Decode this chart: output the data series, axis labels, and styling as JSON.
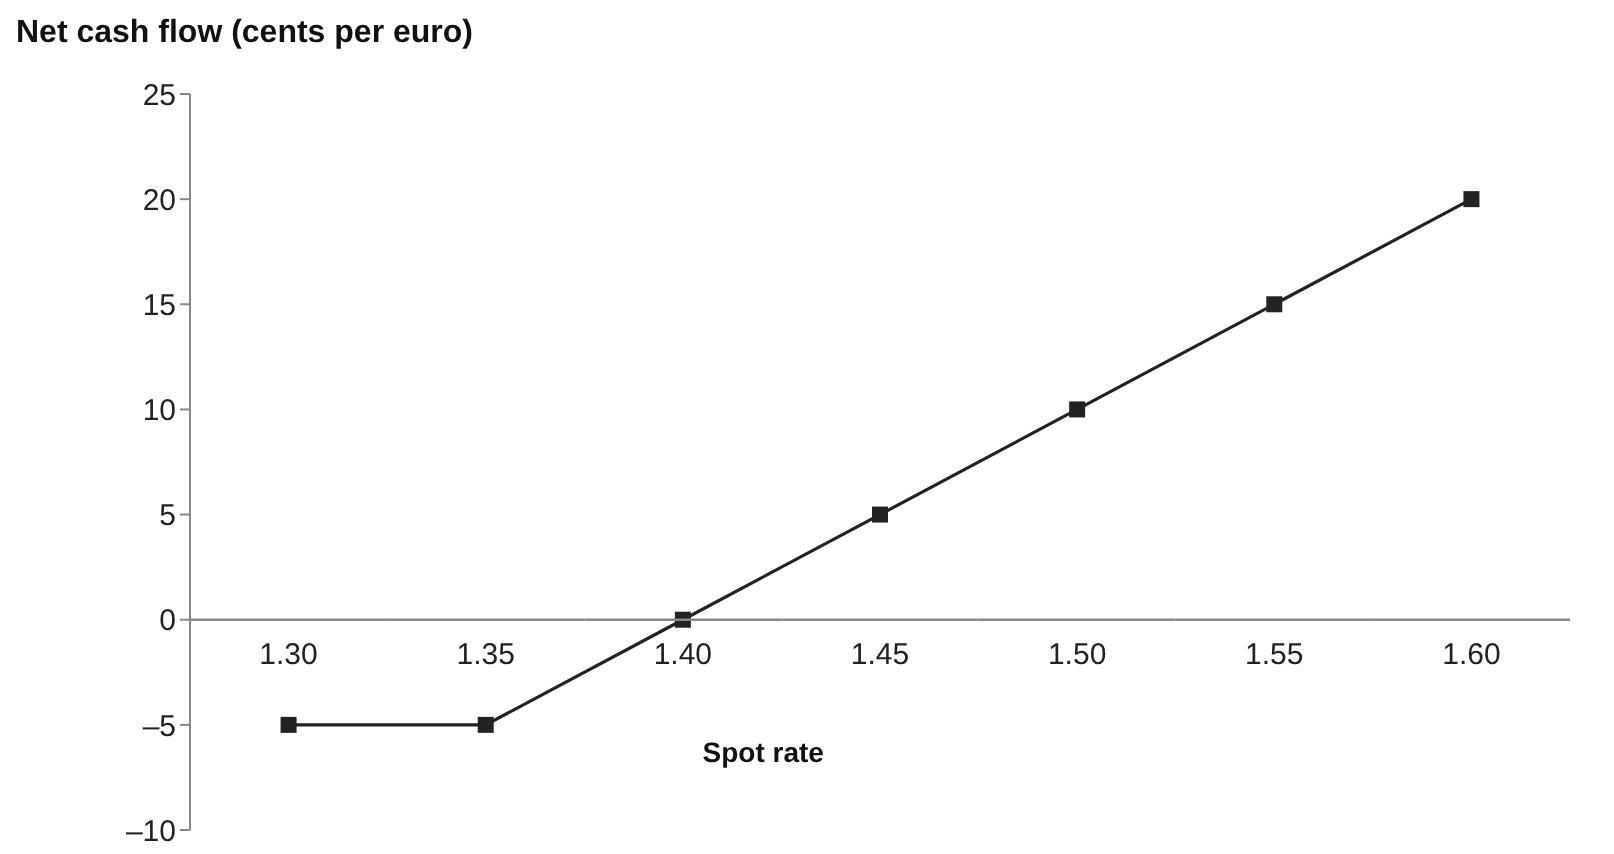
{
  "chart_data": {
    "type": "line",
    "ylabel": "Net cash flow (cents per euro)",
    "xlabel": "Spot rate",
    "categories": [
      "1.30",
      "1.35",
      "1.40",
      "1.45",
      "1.50",
      "1.55",
      "1.60"
    ],
    "series": [
      {
        "color": "#222222",
        "values": [
          -5,
          -5,
          0,
          5,
          10,
          15,
          20
        ]
      }
    ],
    "ylim": [
      -10,
      25
    ],
    "yticks": [
      {
        "value": -10,
        "label": "–10"
      },
      {
        "value": -5,
        "label": "–5"
      },
      0,
      5,
      10,
      15,
      20,
      25
    ],
    "marker": "square"
  }
}
